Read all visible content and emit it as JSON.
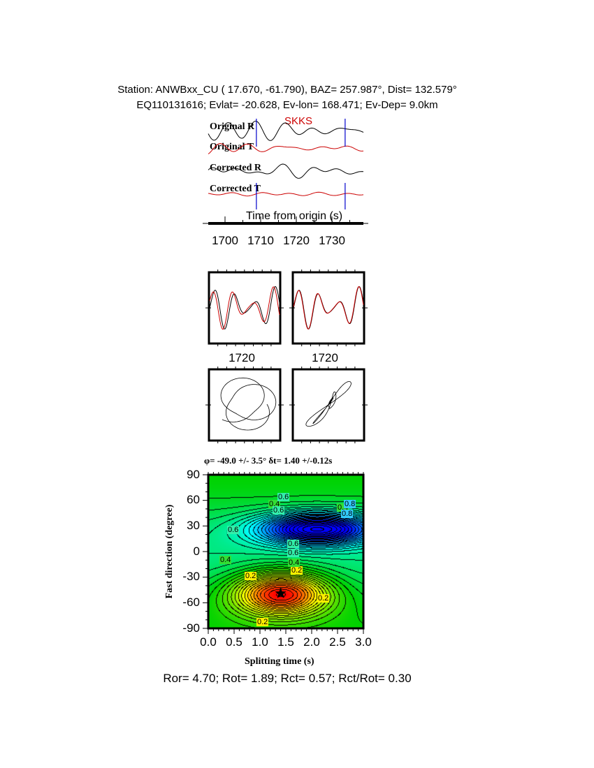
{
  "header": {
    "line1": "Station: ANWBxx_CU (  17.670,  -61.790), BAZ=  257.987°, Dist=  132.579°",
    "line2": "EQ110131616; Evlat= -20.628, Ev-lon= 168.471; Ev-Dep=  9.0km"
  },
  "waveforms": {
    "phase": "SKKS",
    "traces": [
      "Original R",
      "Original T",
      "Corrected R",
      "Corrected T"
    ],
    "xlabel": "Time from origin (s)",
    "ticks": [
      "1700",
      "1710",
      "1720",
      "1730"
    ],
    "window_s": [
      1708.8,
      1733.7
    ],
    "colors": {
      "radial": "#000000",
      "transverse": "#cc0000",
      "window": "#0000cc"
    }
  },
  "particle_panels": {
    "tick_labels": [
      "1720",
      "1720"
    ]
  },
  "chart_data": {
    "type": "heatmap",
    "title": "φ= -49.0 +/- 3.5° δt= 1.40 +/-0.12s",
    "xlabel": "Splitting time (s)",
    "ylabel": "Fast direction (degree)",
    "xlim": [
      0.0,
      3.0
    ],
    "ylim": [
      -90,
      90
    ],
    "xticks": [
      "0.0",
      "0.5",
      "1.0",
      "1.5",
      "2.0",
      "2.5",
      "3.0"
    ],
    "yticks": [
      "90",
      "60",
      "30",
      "0",
      "-30",
      "-60",
      "-90"
    ],
    "contour_labels": [
      "0.2",
      "0.2",
      "0.2",
      "0.2",
      "0.4",
      "0.4",
      "0.4",
      "0.4",
      "0.6",
      "0.6",
      "0.6",
      "0.6",
      "0.6",
      "0.8",
      "0.8"
    ],
    "best_fit": {
      "dt": 1.4,
      "phi": -49.0
    },
    "colormap": [
      "#ff0000",
      "#ffff00",
      "#00cc00",
      "#00ffff",
      "#0000ff"
    ]
  },
  "footer": "Ror= 4.70; Rot= 1.89; Rct= 0.57; Rct/Rot= 0.30"
}
